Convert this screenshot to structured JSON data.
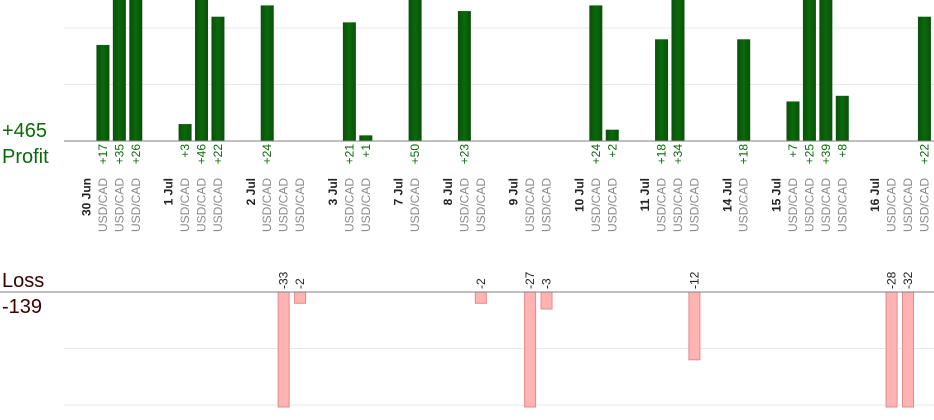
{
  "summary": {
    "profit_total": "+465",
    "profit_label": "Profit",
    "loss_label": "Loss",
    "loss_total": "-139"
  },
  "colors": {
    "profit_bar_top": "#0a6a0a",
    "profit_bar_bottom": "#0b4f0b",
    "profit_text": "#0a6a0a",
    "loss_bar": "#ffb3b3",
    "loss_bar_edge": "#e58a8a",
    "loss_text": "#3a0000",
    "date_text": "#222222",
    "pair_text": "#8a8a8a",
    "grid": "#e8e8e8",
    "axis": "#808080"
  },
  "chart_data": {
    "type": "bar",
    "title": "",
    "xlabel": "",
    "ylabel": "",
    "grid": true,
    "profit_ylim": [
      0,
      25
    ],
    "loss_ylim": [
      -20,
      0
    ],
    "date_labels": [
      "30 Jun",
      "1 Jul",
      "2 Jul",
      "3 Jul",
      "7 Jul",
      "8 Jul",
      "9 Jul",
      "10 Jul",
      "11 Jul",
      "14 Jul",
      "15 Jul",
      "16 Jul"
    ],
    "slots": [
      {
        "date": "30 Jun"
      },
      {
        "pair": "USD/CAD",
        "value": 17
      },
      {
        "pair": "USD/CAD",
        "value": 35
      },
      {
        "pair": "USD/CAD",
        "value": 26
      },
      {},
      {
        "date": "1 Jul"
      },
      {
        "pair": "USD/CAD",
        "value": 3
      },
      {
        "pair": "USD/CAD",
        "value": 46
      },
      {
        "pair": "USD/CAD",
        "value": 22
      },
      {},
      {
        "date": "2 Jul"
      },
      {
        "pair": "USD/CAD",
        "value": 24
      },
      {
        "pair": "USD/CAD",
        "value": -33
      },
      {
        "pair": "USD/CAD",
        "value": -2
      },
      {},
      {
        "date": "3 Jul"
      },
      {
        "pair": "USD/CAD",
        "value": 21
      },
      {
        "pair": "USD/CAD",
        "value": 1
      },
      {},
      {
        "date": "7 Jul"
      },
      {
        "pair": "USD/CAD",
        "value": 50
      },
      {},
      {
        "date": "8 Jul"
      },
      {
        "pair": "USD/CAD",
        "value": 23
      },
      {
        "pair": "USD/CAD",
        "value": -2
      },
      {},
      {
        "date": "9 Jul"
      },
      {
        "pair": "USD/CAD",
        "value": -27
      },
      {
        "pair": "USD/CAD",
        "value": -3
      },
      {},
      {
        "date": "10 Jul"
      },
      {
        "pair": "USD/CAD",
        "value": 24
      },
      {
        "pair": "USD/CAD",
        "value": 2
      },
      {},
      {
        "date": "11 Jul"
      },
      {
        "pair": "USD/CAD",
        "value": 18
      },
      {
        "pair": "USD/CAD",
        "value": 34
      },
      {
        "pair": "USD/CAD",
        "value": -12
      },
      {},
      {
        "date": "14 Jul"
      },
      {
        "pair": "USD/CAD",
        "value": 18
      },
      {},
      {
        "date": "15 Jul"
      },
      {
        "pair": "USD/CAD",
        "value": 7
      },
      {
        "pair": "USD/CAD",
        "value": 25
      },
      {
        "pair": "USD/CAD",
        "value": 39
      },
      {
        "pair": "USD/CAD",
        "value": 8
      },
      {},
      {
        "date": "16 Jul"
      },
      {
        "pair": "USD/CAD",
        "value": -28
      },
      {
        "pair": "USD/CAD",
        "value": -32
      },
      {
        "pair": "USD/CAD",
        "value": 22
      }
    ]
  }
}
